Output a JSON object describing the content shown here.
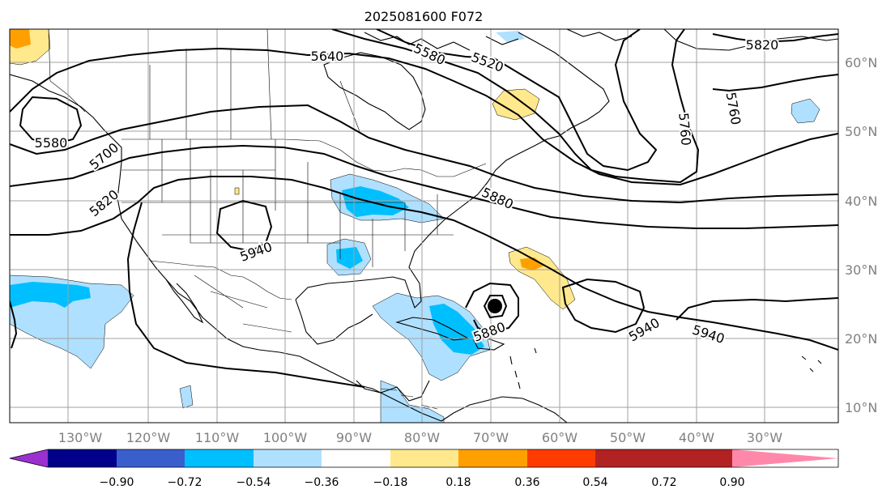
{
  "title": "2025081600 F072",
  "lon_labels": [
    "130°W",
    "120°W",
    "110°W",
    "100°W",
    "90°W",
    "80°W",
    "70°W",
    "60°W",
    "50°W",
    "40°W",
    "30°W"
  ],
  "lat_labels": [
    "60°N",
    "50°N",
    "40°N",
    "30°N",
    "20°N",
    "10°N"
  ],
  "contour_labels": [
    "5640",
    "5580",
    "5520",
    "5820",
    "5580",
    "5700",
    "5820",
    "5880",
    "5940",
    "5760",
    "5760",
    "5880",
    "5940",
    "5940"
  ],
  "colorbar": {
    "ticks": [
      "−0.90",
      "−0.72",
      "−0.54",
      "−0.36",
      "−0.18",
      "0.18",
      "0.36",
      "0.54",
      "0.72",
      "0.90"
    ],
    "colors": [
      "#9b30d0",
      "#00008b",
      "#3a5fcd",
      "#00bfff",
      "#b0e0ff",
      "#ffffff",
      "#ffe98c",
      "#ffa000",
      "#ff3c00",
      "#b22222",
      "#ff88aa"
    ]
  },
  "colors": {
    "low_neg": "#b0e0ff",
    "mid_neg": "#00bfff",
    "low_pos": "#ffe98c",
    "mid_pos": "#ffa000"
  }
}
